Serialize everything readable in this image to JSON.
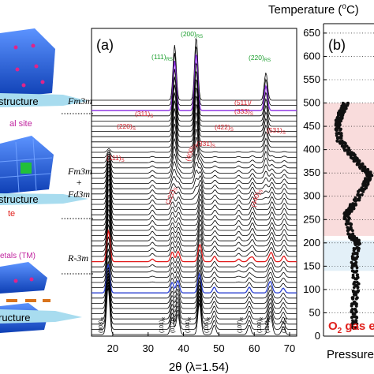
{
  "left_panel": {
    "captions": [
      "structure",
      "al site",
      "structure",
      "te",
      "etals (TM)",
      "ructure"
    ],
    "colors": {
      "block": "#1f5fd8",
      "arrow": "#a8dcef",
      "site_text": "#c0249f",
      "red_text": "#e0201c",
      "orange_bars": "#d9731c"
    }
  },
  "panel_a": {
    "label": "(a)",
    "phases": [
      "Fm3m",
      "Fm3m",
      "+",
      "Fd3m",
      "R-3m"
    ],
    "peak_labels": [
      {
        "text": "(111)",
        "sub": "RS",
        "color": "#1a9e2c"
      },
      {
        "text": "(200)",
        "sub": "RS",
        "color": "#1a9e2c"
      },
      {
        "text": "(220)",
        "sub": "RS",
        "color": "#1a9e2c"
      },
      {
        "text": "(311)",
        "sub": "S",
        "color": "#d4202a"
      },
      {
        "text": "(220)",
        "sub": "S",
        "color": "#d4202a"
      },
      {
        "text": "(111)",
        "sub": "S",
        "color": "#d4202a"
      },
      {
        "text": "(400)",
        "sub": "S",
        "color": "#d4202a"
      },
      {
        "text": "(222)",
        "sub": "S",
        "color": "#d4202a"
      },
      {
        "text": "(331)",
        "sub": "S",
        "color": "#d4202a"
      },
      {
        "text": "(422)",
        "sub": "S",
        "color": "#d4202a"
      },
      {
        "text": "(511)/",
        "sub": "",
        "color": "#d4202a"
      },
      {
        "text": "(333)",
        "sub": "S",
        "color": "#d4202a"
      },
      {
        "text": "(440)",
        "sub": "S",
        "color": "#d4202a"
      },
      {
        "text": "(531)",
        "sub": "S",
        "color": "#d4202a"
      },
      {
        "text": "(003)",
        "sub": "R",
        "color": "#000000"
      },
      {
        "text": "(101)",
        "sub": "R",
        "color": "#000000"
      },
      {
        "text": "(012)",
        "sub": "R",
        "color": "#000000"
      },
      {
        "text": "(104)",
        "sub": "R",
        "color": "#000000"
      },
      {
        "text": "(105)",
        "sub": "R",
        "color": "#000000"
      },
      {
        "text": "(107)",
        "sub": "R",
        "color": "#000000"
      },
      {
        "text": "(108)",
        "sub": "R",
        "color": "#000000"
      },
      {
        "text": "(110)",
        "sub": "R",
        "color": "#000000"
      },
      {
        "text": "(113)",
        "sub": "R",
        "color": "#000000"
      }
    ]
  },
  "panel_b": {
    "label": "(b)",
    "title_prefix": "Temperature (",
    "title_sup": "o",
    "title_suffix": "C)",
    "gas_label": "O",
    "gas_sub": "2",
    "gas_suffix": " gas e",
    "xlabel": "Pressure"
  },
  "chart_data": [
    {
      "type": "line",
      "title": "",
      "xlabel": "2θ (λ=1.54)",
      "xlim": [
        14,
        72
      ],
      "x_ticks": [
        20,
        30,
        40,
        50,
        60,
        70
      ],
      "n_patterns": 46,
      "highlighted_patterns": [
        {
          "index": 8,
          "color": "#2a3fd0"
        },
        {
          "index": 14,
          "color": "#e01b1b"
        },
        {
          "index": 43,
          "color": "#8a2be2"
        }
      ],
      "peaks_2theta": [
        {
          "label": "(003)R",
          "x": 18.7
        },
        {
          "label": "(101)R",
          "x": 36.8
        },
        {
          "label": "(012)R",
          "x": 38.4
        },
        {
          "label": "(104)R",
          "x": 44.5
        },
        {
          "label": "(105)R",
          "x": 48.7
        },
        {
          "label": "(107)R",
          "x": 58.6
        },
        {
          "label": "(108)R",
          "x": 64.2
        },
        {
          "label": "(110)R",
          "x": 64.8
        },
        {
          "label": "(113)R",
          "x": 68.2
        },
        {
          "label": "(111)RS",
          "x": 37.5
        },
        {
          "label": "(200)RS",
          "x": 43.6
        },
        {
          "label": "(220)RS",
          "x": 63.3
        },
        {
          "label": "(111)S",
          "x": 18.9
        },
        {
          "label": "(220)S",
          "x": 31.2
        },
        {
          "label": "(311)S",
          "x": 36.9
        },
        {
          "label": "(222)S",
          "x": 38.6
        },
        {
          "label": "(400)S",
          "x": 44.8
        },
        {
          "label": "(331)S",
          "x": 48.9
        },
        {
          "label": "(422)S",
          "x": 55.6
        },
        {
          "label": "(511)/(333)S",
          "x": 59.5
        },
        {
          "label": "(440)S",
          "x": 65.0
        },
        {
          "label": "(531)S",
          "x": 68.5
        }
      ]
    },
    {
      "type": "scatter",
      "title": "",
      "ylabel": "Temperature (oC)",
      "xlabel": "Pressure",
      "ylim": [
        0,
        660
      ],
      "y_ticks": [
        0,
        50,
        100,
        150,
        200,
        250,
        300,
        350,
        400,
        450,
        500,
        550,
        600,
        650
      ],
      "shaded_bands": [
        [
          215,
          500
        ],
        [
          140,
          205
        ]
      ],
      "trace_segments": [
        [
          [
            0.62,
            15
          ],
          [
            0.6,
            60
          ],
          [
            0.65,
            110
          ],
          [
            0.6,
            160
          ],
          [
            0.68,
            200
          ],
          [
            0.55,
            215
          ]
        ],
        [
          [
            0.55,
            215
          ],
          [
            0.45,
            260
          ],
          [
            0.58,
            280
          ],
          [
            0.8,
            320
          ],
          [
            0.92,
            345
          ],
          [
            0.75,
            365
          ],
          [
            0.55,
            390
          ],
          [
            0.32,
            420
          ],
          [
            0.28,
            455
          ],
          [
            0.35,
            480
          ],
          [
            0.45,
            500
          ]
        ]
      ]
    }
  ]
}
